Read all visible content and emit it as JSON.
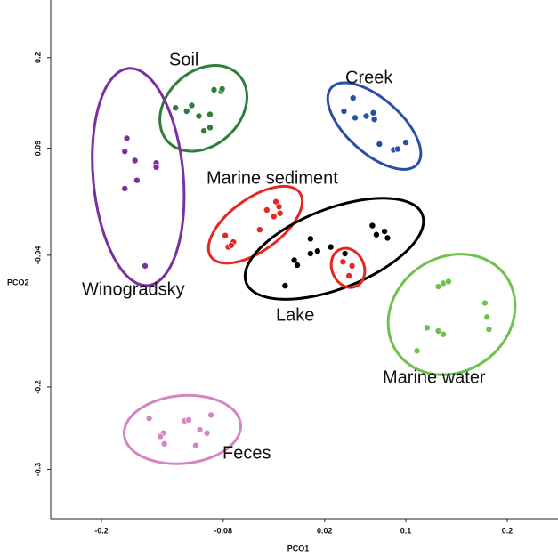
{
  "chart_data": {
    "type": "scatter",
    "x_label": "PCO1",
    "y_label": "PCO2",
    "xlim": [
      -0.25,
      0.25
    ],
    "ylim": [
      -0.36,
      0.27
    ],
    "xticks": [
      -0.2,
      -0.08,
      0.02,
      0.1,
      0.2
    ],
    "yticks": [
      0.2,
      0.09,
      -0.04,
      -0.2,
      -0.3
    ],
    "series": [
      {
        "name": "Soil",
        "color": "#2e7d3a",
        "x": [
          -0.127,
          -0.116,
          -0.111,
          -0.104,
          -0.093,
          -0.089,
          -0.082,
          -0.081,
          -0.093,
          -0.099
        ],
        "y": [
          0.139,
          0.135,
          0.142,
          0.129,
          0.131,
          0.161,
          0.159,
          0.162,
          0.115,
          0.111
        ]
      },
      {
        "name": "Creek",
        "color": "#2a4fa8",
        "x": [
          0.039,
          0.048,
          0.05,
          0.061,
          0.068,
          0.069,
          0.074,
          0.088,
          0.092,
          0.1
        ],
        "y": [
          0.135,
          0.151,
          0.127,
          0.129,
          0.133,
          0.125,
          0.095,
          0.088,
          0.089,
          0.097
        ]
      },
      {
        "name": "Marine sediment",
        "color": "#e8261f",
        "x": [
          -0.078,
          -0.075,
          -0.07,
          -0.072,
          -0.044,
          -0.037,
          -0.028,
          -0.025,
          -0.024,
          -0.03
        ],
        "y": [
          -0.016,
          -0.03,
          -0.024,
          -0.028,
          -0.009,
          0.015,
          0.025,
          0.019,
          0.011,
          0.007
        ]
      },
      {
        "name": "Winogradsky",
        "color": "#7b2fa0",
        "x": [
          -0.175,
          -0.177,
          -0.167,
          -0.146,
          -0.146,
          -0.165,
          -0.177,
          -0.157
        ],
        "y": [
          0.102,
          0.086,
          0.075,
          0.072,
          0.067,
          0.051,
          0.041,
          -0.053
        ]
      },
      {
        "name": "Lake",
        "color": "#000000",
        "x": [
          -0.019,
          -0.01,
          -0.007,
          0.006,
          0.006,
          0.013,
          0.026,
          0.04,
          0.067,
          0.071,
          0.079,
          0.082
        ],
        "y": [
          -0.077,
          -0.046,
          -0.052,
          -0.02,
          -0.038,
          -0.035,
          -0.03,
          -0.038,
          -0.004,
          -0.015,
          -0.011,
          -0.019
        ]
      },
      {
        "color": "#e8261f",
        "x": [
          0.038,
          0.047,
          0.044
        ],
        "y": [
          -0.048,
          -0.053,
          -0.065
        ]
      },
      {
        "name": "Marine water",
        "color": "#6cc24a",
        "x": [
          0.137,
          0.142,
          0.132,
          0.121,
          0.132,
          0.137,
          0.178,
          0.18,
          0.182,
          0.111
        ],
        "y": [
          -0.074,
          -0.072,
          -0.078,
          -0.128,
          -0.132,
          -0.136,
          -0.098,
          -0.115,
          -0.13,
          -0.156
        ]
      },
      {
        "name": "Feces",
        "color": "#d486c4",
        "x": [
          -0.153,
          -0.139,
          -0.138,
          -0.118,
          -0.114,
          -0.103,
          -0.096,
          -0.092,
          -0.107,
          -0.142
        ],
        "y": [
          -0.238,
          -0.256,
          -0.269,
          -0.241,
          -0.24,
          -0.252,
          -0.256,
          -0.234,
          -0.271,
          -0.26
        ]
      }
    ]
  }
}
